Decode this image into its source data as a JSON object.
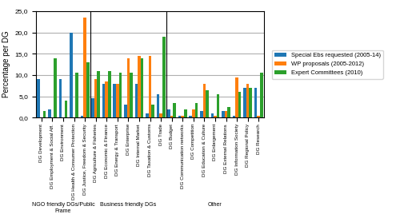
{
  "chart_data": {
    "type": "bar",
    "categories": [
      "DG Development",
      "DG Employment & Social Aff.",
      "DG Environment",
      "DG Health & Consumer Protection",
      "DG Justice, Freedom & Security",
      "DG Agriculture & Fisheries",
      "DG Economic & Finance",
      "DG Energy & Transport",
      "DG Enterprise",
      "DG Internal Market",
      "DG Taxation & Customs",
      "DG Trade",
      "DG Budget",
      "DG Communication networks",
      "DG Competition",
      "DG Education & Culture",
      "DG Enlargement",
      "DG External Relations",
      "DG Information Society",
      "DG Regional Policy",
      "DG Research"
    ],
    "series": [
      {
        "name": "Special Ebs requested (2005-14)",
        "values": [
          9.0,
          2.0,
          9.0,
          20.0,
          0.5,
          4.5,
          8.0,
          8.0,
          3.0,
          8.0,
          1.0,
          5.5,
          2.0,
          0.5,
          0.5,
          1.5,
          1.0,
          1.5,
          0.5,
          7.0,
          7.0
        ]
      },
      {
        "name": "WP proposals (2005-2012)",
        "values": [
          0.0,
          0.0,
          0.0,
          0.0,
          23.5,
          9.0,
          8.5,
          8.0,
          14.0,
          14.5,
          14.5,
          1.0,
          0.5,
          0.5,
          2.0,
          8.0,
          0.5,
          1.5,
          9.5,
          8.0,
          0.5
        ]
      },
      {
        "name": "Expert Committees (2010)",
        "values": [
          1.5,
          14.0,
          4.0,
          10.5,
          13.0,
          11.0,
          11.0,
          10.5,
          10.5,
          14.0,
          3.0,
          19.0,
          3.5,
          2.0,
          3.5,
          6.5,
          5.5,
          2.5,
          6.0,
          7.0,
          10.5
        ]
      }
    ],
    "groups": [
      {
        "label": "NGO friendly DGs/Public\nFrame",
        "first": "DG Development",
        "last": "DG Justice, Freedom & Security"
      },
      {
        "label": "Business friendly DGs",
        "first": "DG Agriculture & Fisheries",
        "last": "DG Trade"
      },
      {
        "label": "Other",
        "first": "DG Budget",
        "last": "DG Research"
      }
    ],
    "y_label": "Percentage per DG",
    "ylim": [
      0,
      25
    ],
    "yticks": [
      {
        "value": 0.0,
        "label": "0,0"
      },
      {
        "value": 5.0,
        "label": "5,0"
      },
      {
        "value": 10.0,
        "label": "10,0"
      },
      {
        "value": 15.0,
        "label": "15,0"
      },
      {
        "value": 20.0,
        "label": "20,0"
      },
      {
        "value": 25.0,
        "label": "25,0"
      }
    ],
    "grid": true,
    "legend": "center left"
  }
}
